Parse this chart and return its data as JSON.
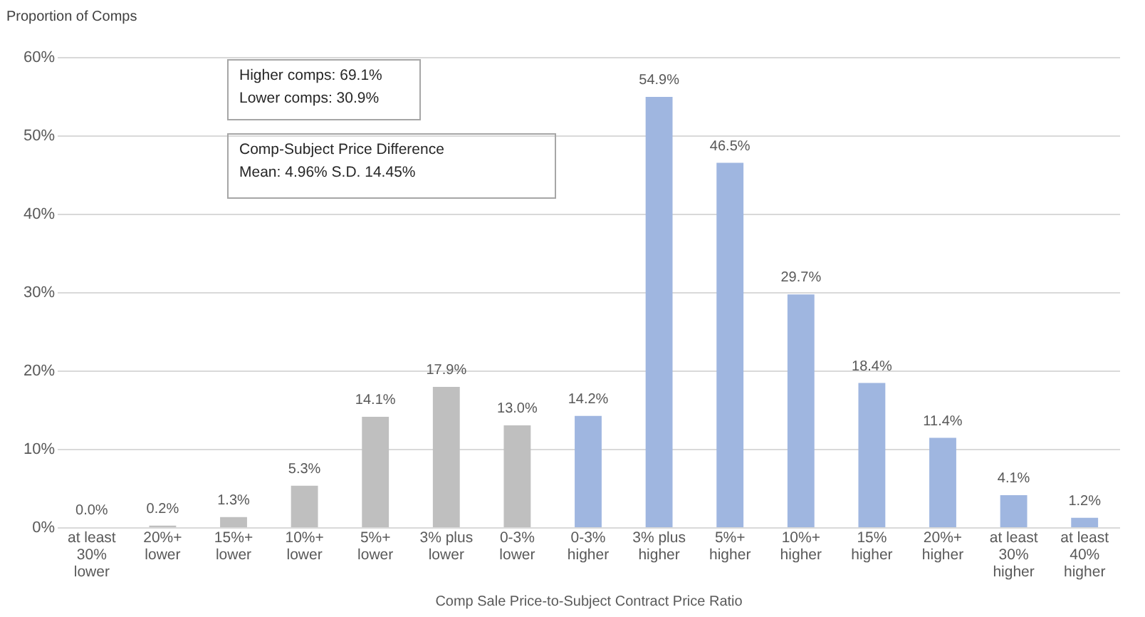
{
  "chart_data": {
    "type": "bar",
    "xlabel": "Comp Sale Price-to-Subject Contract Price Ratio",
    "ylabel": "Proportion of Comps",
    "categories": [
      "at least\n30%\nlower",
      "20%+\nlower",
      "15%+\nlower",
      "10%+\nlower",
      "5%+\nlower",
      "3% plus\nlower",
      "0-3%\nlower",
      "0-3%\nhigher",
      "3% plus\nhigher",
      "5%+\nhigher",
      "10%+\nhigher",
      "15%\nhigher",
      "20%+\nhigher",
      "at least\n30%\nhigher",
      "at least\n40%\nhigher"
    ],
    "values": [
      0.0,
      0.2,
      1.3,
      5.3,
      14.1,
      17.9,
      13.0,
      14.2,
      54.9,
      46.5,
      29.7,
      18.4,
      11.4,
      4.1,
      1.2
    ],
    "value_labels": [
      "0.0%",
      "0.2%",
      "1.3%",
      "5.3%",
      "14.1%",
      "17.9%",
      "13.0%",
      "14.2%",
      "54.9%",
      "46.5%",
      "29.7%",
      "18.4%",
      "11.4%",
      "4.1%",
      "1.2%"
    ],
    "colors": [
      "#bfbfbf",
      "#bfbfbf",
      "#bfbfbf",
      "#bfbfbf",
      "#bfbfbf",
      "#bfbfbf",
      "#bfbfbf",
      "#9fb6e0",
      "#9fb6e0",
      "#9fb6e0",
      "#9fb6e0",
      "#9fb6e0",
      "#9fb6e0",
      "#9fb6e0",
      "#9fb6e0"
    ],
    "ylim": [
      0,
      60
    ],
    "yticks": [
      {
        "value": 0,
        "label": "0%"
      },
      {
        "value": 10,
        "label": "10%"
      },
      {
        "value": 20,
        "label": "20%"
      },
      {
        "value": 30,
        "label": "30%"
      },
      {
        "value": 40,
        "label": "40%"
      },
      {
        "value": 50,
        "label": "50%"
      },
      {
        "value": 60,
        "label": "60%"
      }
    ],
    "grid": "y",
    "annotations": [
      "Higher comps: 69.1%\nLower comps: 30.9%",
      "Comp-Subject Price Difference\nMean: 4.96%  S.D. 14.45%"
    ]
  }
}
